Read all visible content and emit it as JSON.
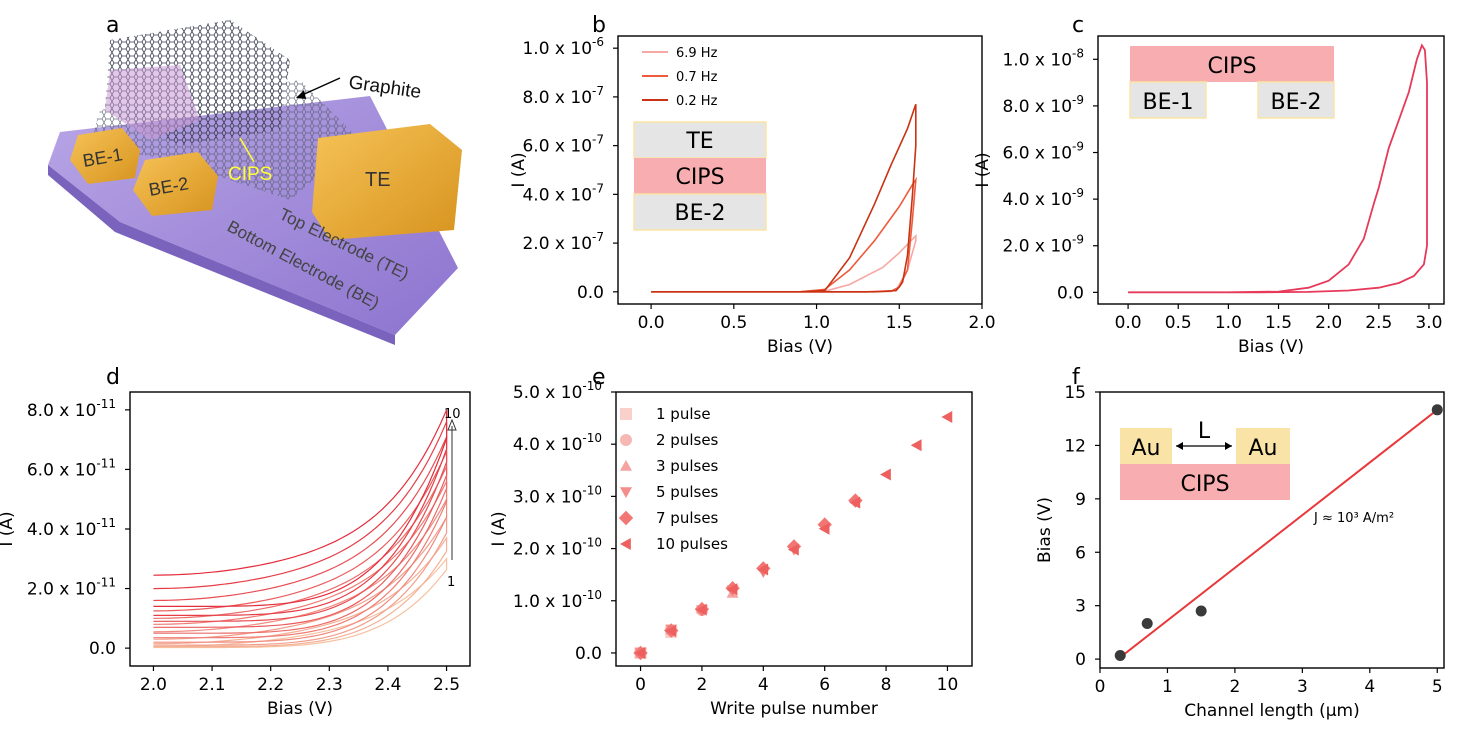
{
  "panels": {
    "a": {
      "letter": "a",
      "labels": {
        "graphite": "Graphite",
        "cips": "CIPS",
        "be1": "BE-1",
        "be2": "BE-2",
        "te": "TE",
        "top_electrode": "Top Electrode (TE)",
        "bottom_electrode": "Bottom Electrode (BE)"
      }
    },
    "b": {
      "letter": "b",
      "inset": {
        "top": "TE",
        "middle": "CIPS",
        "bottom": "BE-2"
      }
    },
    "c": {
      "letter": "c",
      "inset": {
        "top": "CIPS",
        "left": "BE-1",
        "right": "BE-2"
      }
    },
    "d": {
      "letter": "d",
      "arrow_top": "10",
      "arrow_bottom": "1"
    },
    "e": {
      "letter": "e"
    },
    "f": {
      "letter": "f",
      "inset": {
        "left": "Au",
        "right": "Au",
        "gap": "L",
        "bottom": "CIPS"
      },
      "annotation": "J ≈ 10³ A/m²"
    }
  },
  "colors": {
    "inset_gray": "#e5e5e5",
    "inset_pink": "#f8aeb0",
    "inset_yellow": "#f9e3a6",
    "f_line": "#e8383a",
    "f_points": "#3a3a3a",
    "e_marker": "#f07270"
  },
  "chart_data": [
    {
      "panel": "b",
      "type": "line",
      "xlabel": "Bias (V)",
      "ylabel": "I (A)",
      "xlim": [
        -0.2,
        2.0
      ],
      "ylim": [
        -5e-08,
        1.05e-06
      ],
      "xticks": [
        "0.0",
        "0.5",
        "1.0",
        "1.5",
        "2.0"
      ],
      "yticks": [
        {
          "m": "0.0",
          "e": ""
        },
        {
          "m": "2.0 x 10",
          "e": "-7"
        },
        {
          "m": "4.0 x 10",
          "e": "-7"
        },
        {
          "m": "6.0 x 10",
          "e": "-7"
        },
        {
          "m": "8.0 x 10",
          "e": "-7"
        },
        {
          "m": "1.0 x 10",
          "e": "-6"
        }
      ],
      "ytick_values": [
        0,
        2e-07,
        4e-07,
        6e-07,
        8e-07,
        1e-06
      ],
      "legend_position": "top-left",
      "series": [
        {
          "name": "6.9 Hz",
          "color": "#f6a8a4",
          "x": [
            0,
            0.5,
            0.9,
            1.05,
            1.2,
            1.4,
            1.5,
            1.6,
            1.6,
            1.55,
            1.5,
            1.48,
            1.3,
            1.0,
            0.5,
            0
          ],
          "y": [
            0,
            0,
            0,
            2e-09,
            3e-08,
            1e-07,
            1.6e-07,
            2.3e-07,
            2.1e-07,
            9e-08,
            3e-08,
            5e-09,
            0,
            0,
            0,
            0
          ]
        },
        {
          "name": "0.7 Hz",
          "color": "#ee5a3c",
          "x": [
            0,
            0.5,
            0.9,
            1.05,
            1.2,
            1.35,
            1.5,
            1.58,
            1.6,
            1.58,
            1.55,
            1.5,
            1.45,
            1.3,
            1.0,
            0.5,
            0
          ],
          "y": [
            0,
            0,
            0,
            1e-08,
            9e-08,
            2.1e-07,
            3.5e-07,
            4.4e-07,
            4.6e-07,
            3e-07,
            9e-08,
            2e-08,
            2e-09,
            0,
            0,
            0,
            0
          ]
        },
        {
          "name": "0.2 Hz",
          "color": "#c93212",
          "x": [
            0,
            0.5,
            0.9,
            1.05,
            1.2,
            1.35,
            1.45,
            1.55,
            1.6,
            1.6,
            1.58,
            1.55,
            1.52,
            1.5,
            1.48,
            1.35,
            1.0,
            0.5,
            0
          ],
          "y": [
            0,
            0,
            0,
            5e-09,
            1.4e-07,
            3.6e-07,
            5.2e-07,
            6.7e-07,
            7.7e-07,
            6e-07,
            4e-07,
            1.5e-07,
            4e-08,
            2e-08,
            5e-09,
            0,
            0,
            0,
            0
          ]
        }
      ]
    },
    {
      "panel": "c",
      "type": "line",
      "xlabel": "Bias (V)",
      "ylabel": "I (A)",
      "xlim": [
        -0.3,
        3.15
      ],
      "ylim": [
        -5e-10,
        1.1e-08
      ],
      "xticks": [
        "0.0",
        "0.5",
        "1.0",
        "1.5",
        "2.0",
        "2.5",
        "3.0"
      ],
      "yticks": [
        {
          "m": "0.0",
          "e": ""
        },
        {
          "m": "2.0 x 10",
          "e": "-9"
        },
        {
          "m": "4.0 x 10",
          "e": "-9"
        },
        {
          "m": "6.0 x 10",
          "e": "-9"
        },
        {
          "m": "8.0 x 10",
          "e": "-9"
        },
        {
          "m": "1.0 x 10",
          "e": "-8"
        }
      ],
      "ytick_values": [
        0,
        2e-09,
        4e-09,
        6e-09,
        8e-09,
        1e-08
      ],
      "series": [
        {
          "color": "#e7395a",
          "x": [
            0,
            1.0,
            1.5,
            1.8,
            2.0,
            2.2,
            2.35,
            2.45,
            2.5,
            2.6,
            2.7,
            2.8,
            2.88,
            2.93,
            2.96,
            2.98,
            2.98,
            2.95,
            2.85,
            2.7,
            2.5,
            2.2,
            1.8,
            1.3,
            0.8,
            0
          ],
          "y": [
            0,
            0,
            3e-11,
            2e-10,
            5e-10,
            1.2e-09,
            2.3e-09,
            3.8e-09,
            4.5e-09,
            6.2e-09,
            7.4e-09,
            8.6e-09,
            1e-08,
            1.06e-08,
            1.04e-08,
            9e-09,
            2e-09,
            1.2e-09,
            7e-10,
            4e-10,
            2e-10,
            8e-11,
            2e-11,
            0,
            0,
            0
          ]
        }
      ]
    },
    {
      "panel": "d",
      "type": "line",
      "xlabel": "Bias (V)",
      "ylabel": "I (A)",
      "xlim": [
        1.96,
        2.54
      ],
      "ylim": [
        -6e-12,
        8.6e-11
      ],
      "xticks": [
        "2.0",
        "2.1",
        "2.2",
        "2.3",
        "2.4",
        "2.5"
      ],
      "yticks": [
        {
          "m": "0.0",
          "e": ""
        },
        {
          "m": "2.0 x 10",
          "e": "-11"
        },
        {
          "m": "4.0 x 10",
          "e": "-11"
        },
        {
          "m": "6.0 x 10",
          "e": "-11"
        },
        {
          "m": "8.0 x 10",
          "e": "-11"
        }
      ],
      "ytick_values": [
        0,
        2e-11,
        4e-11,
        6e-11,
        8e-11
      ],
      "series": [
        {
          "name": "1",
          "color": "#f6c19f",
          "start": 5e-13,
          "top": 3e-11,
          "drop": 2e-13
        },
        {
          "name": "2",
          "color": "#f4b095",
          "start": 1.5e-12,
          "top": 3.7e-11,
          "drop": 5e-13
        },
        {
          "name": "3",
          "color": "#f29e8b",
          "start": 3e-12,
          "top": 4.4e-11,
          "drop": 1e-12
        },
        {
          "name": "4",
          "color": "#f08b80",
          "start": 5.5e-12,
          "top": 5e-11,
          "drop": 2e-12
        },
        {
          "name": "5",
          "color": "#ee7c74",
          "start": 8e-12,
          "top": 5.6e-11,
          "drop": 3.5e-12
        },
        {
          "name": "6",
          "color": "#ec6c69",
          "start": 1e-11,
          "top": 6.1e-11,
          "drop": 5e-12
        },
        {
          "name": "7",
          "color": "#ea5c5d",
          "start": 1.25e-11,
          "top": 6.6e-11,
          "drop": 7e-12
        },
        {
          "name": "8",
          "color": "#e84d52",
          "start": 1.6e-11,
          "top": 7.1e-11,
          "drop": 9e-12
        },
        {
          "name": "9",
          "color": "#e63d47",
          "start": 2e-11,
          "top": 7.6e-11,
          "drop": 1.1e-11
        },
        {
          "name": "10",
          "color": "#e42d3c",
          "start": 2.45e-11,
          "top": 8e-11,
          "drop": 1.4e-11
        }
      ]
    },
    {
      "panel": "e",
      "type": "scatter",
      "xlabel": "Write pulse number",
      "ylabel": "I (A)",
      "xlim": [
        -0.8,
        10.8
      ],
      "ylim": [
        -2.5e-11,
        5e-10
      ],
      "xticks": [
        "0",
        "2",
        "4",
        "6",
        "8",
        "10"
      ],
      "xtick_values": [
        0,
        2,
        4,
        6,
        8,
        10
      ],
      "yticks": [
        {
          "m": "0.0",
          "e": ""
        },
        {
          "m": "1.0 x 10",
          "e": "-10"
        },
        {
          "m": "2.0 x 10",
          "e": "-10"
        },
        {
          "m": "3.0 x 10",
          "e": "-10"
        },
        {
          "m": "4.0 x 10",
          "e": "-10"
        },
        {
          "m": "5.0 x 10",
          "e": "-10"
        }
      ],
      "ytick_values": [
        0,
        1e-10,
        2e-10,
        3e-10,
        4e-10,
        5e-10
      ],
      "legend_position": "top-left",
      "series": [
        {
          "name": "1 pulse",
          "marker": "square",
          "color": "#f9d1ca",
          "x": [
            0,
            1
          ],
          "y": [
            0,
            4e-11
          ]
        },
        {
          "name": "2 pulses",
          "marker": "circle",
          "color": "#f7b8b3",
          "x": [
            0,
            1,
            2
          ],
          "y": [
            0,
            4.2e-11,
            8.2e-11
          ]
        },
        {
          "name": "3 pulses",
          "marker": "triangle-up",
          "color": "#f5a2a0",
          "x": [
            0,
            1,
            2,
            3
          ],
          "y": [
            0,
            4.5e-11,
            8.5e-11,
            1.15e-10
          ]
        },
        {
          "name": "5 pulses",
          "marker": "triangle-down",
          "color": "#f38c8a",
          "x": [
            0,
            1,
            2,
            3,
            4,
            5
          ],
          "y": [
            0,
            4.5e-11,
            8.2e-11,
            1.2e-10,
            1.55e-10,
            1.98e-10
          ]
        },
        {
          "name": "7 pulses",
          "marker": "diamond",
          "color": "#f17674",
          "x": [
            0,
            1,
            2,
            3,
            4,
            5,
            6,
            7
          ],
          "y": [
            0,
            4.3e-11,
            8.4e-11,
            1.24e-10,
            1.62e-10,
            2.04e-10,
            2.46e-10,
            2.92e-10
          ]
        },
        {
          "name": "10 pulses",
          "marker": "triangle-left",
          "color": "#ee5f5f",
          "x": [
            0,
            1,
            2,
            3,
            4,
            5,
            6,
            7,
            8,
            9,
            10
          ],
          "y": [
            0,
            4.2e-11,
            8.3e-11,
            1.22e-10,
            1.6e-10,
            1.98e-10,
            2.38e-10,
            2.88e-10,
            3.42e-10,
            3.98e-10,
            4.52e-10
          ]
        }
      ]
    },
    {
      "panel": "f",
      "type": "scatter",
      "xlabel": "Channel length (μm)",
      "ylabel": "Bias (V)",
      "xlim": [
        0,
        5.1
      ],
      "ylim": [
        -0.5,
        15
      ],
      "xticks": [
        "0",
        "1",
        "2",
        "3",
        "4",
        "5"
      ],
      "xtick_values": [
        0,
        1,
        2,
        3,
        4,
        5
      ],
      "yticks": [
        "0",
        "3",
        "6",
        "9",
        "12",
        "15"
      ],
      "ytick_values": [
        0,
        3,
        6,
        9,
        12,
        15
      ],
      "points": {
        "x": [
          0.3,
          0.7,
          1.5,
          5.0
        ],
        "y": [
          0.2,
          2.0,
          2.7,
          14.0
        ]
      },
      "fit": {
        "x": [
          0.3,
          5.0
        ],
        "y": [
          0.1,
          14.0
        ]
      }
    }
  ]
}
